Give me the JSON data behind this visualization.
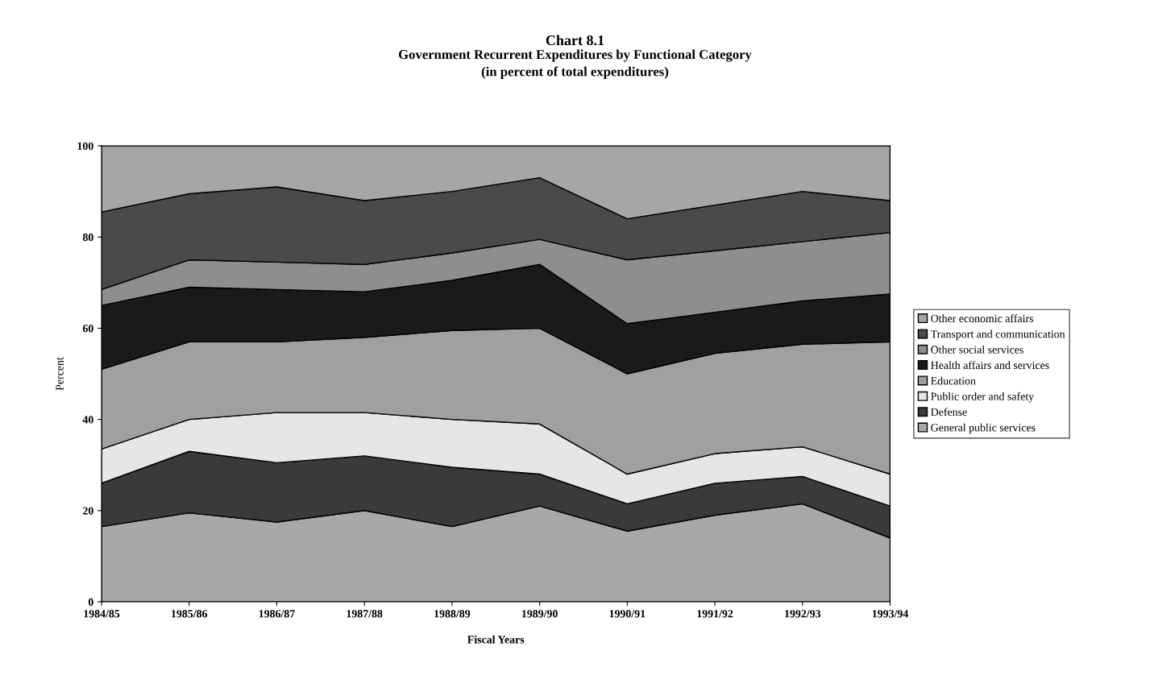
{
  "chart_data": {
    "type": "area",
    "stacked": true,
    "title": "Chart 8.1",
    "subtitle": "Government Recurrent Expenditures by Functional Category\n(in percent of total expenditures)",
    "xlabel": "Fiscal Years",
    "ylabel": "Percent",
    "categories": [
      "1984/85",
      "1985/86",
      "1986/87",
      "1987/88",
      "1988/89",
      "1989/90",
      "1990/91",
      "1991/92",
      "1992/93",
      "1993/94"
    ],
    "series": [
      {
        "name": "General public services",
        "color": "#a8a8a8",
        "values": [
          16.5,
          19.5,
          17.5,
          20,
          16.5,
          21,
          15.5,
          19,
          21.5,
          14
        ]
      },
      {
        "name": "Defense",
        "color": "#3a3a3a",
        "values": [
          9.5,
          13.5,
          13,
          12,
          13,
          7,
          6,
          7,
          6,
          7
        ]
      },
      {
        "name": "Public order and safety",
        "color": "#e6e6e6",
        "values": [
          7.5,
          7,
          11,
          9.5,
          10.5,
          11,
          6.5,
          6.5,
          6.5,
          7
        ]
      },
      {
        "name": "Education",
        "color": "#a0a0a0",
        "values": [
          17.5,
          17,
          15.5,
          16.5,
          19.5,
          21,
          22,
          22,
          22.5,
          29
        ]
      },
      {
        "name": "Health affairs and services",
        "color": "#1a1a1a",
        "values": [
          14,
          12,
          11.5,
          10,
          11,
          14,
          11,
          9,
          9.5,
          10.5
        ]
      },
      {
        "name": "Other social services",
        "color": "#8e8e8e",
        "values": [
          3.5,
          6,
          6,
          6,
          6,
          5.5,
          14,
          13.5,
          13,
          13.5
        ]
      },
      {
        "name": "Transport and communication",
        "color": "#4a4a4a",
        "values": [
          17,
          14.5,
          16.5,
          14,
          13.5,
          13.5,
          9,
          10,
          11,
          7
        ]
      },
      {
        "name": "Other economic affairs",
        "color": "#a6a6a6",
        "values": [
          14.5,
          10.5,
          9,
          12,
          10,
          7,
          16,
          13,
          10,
          12
        ]
      }
    ],
    "ylim": [
      0,
      100
    ],
    "yticks": [
      0,
      20,
      40,
      60,
      80,
      100
    ],
    "grid": false,
    "legend": "right"
  }
}
